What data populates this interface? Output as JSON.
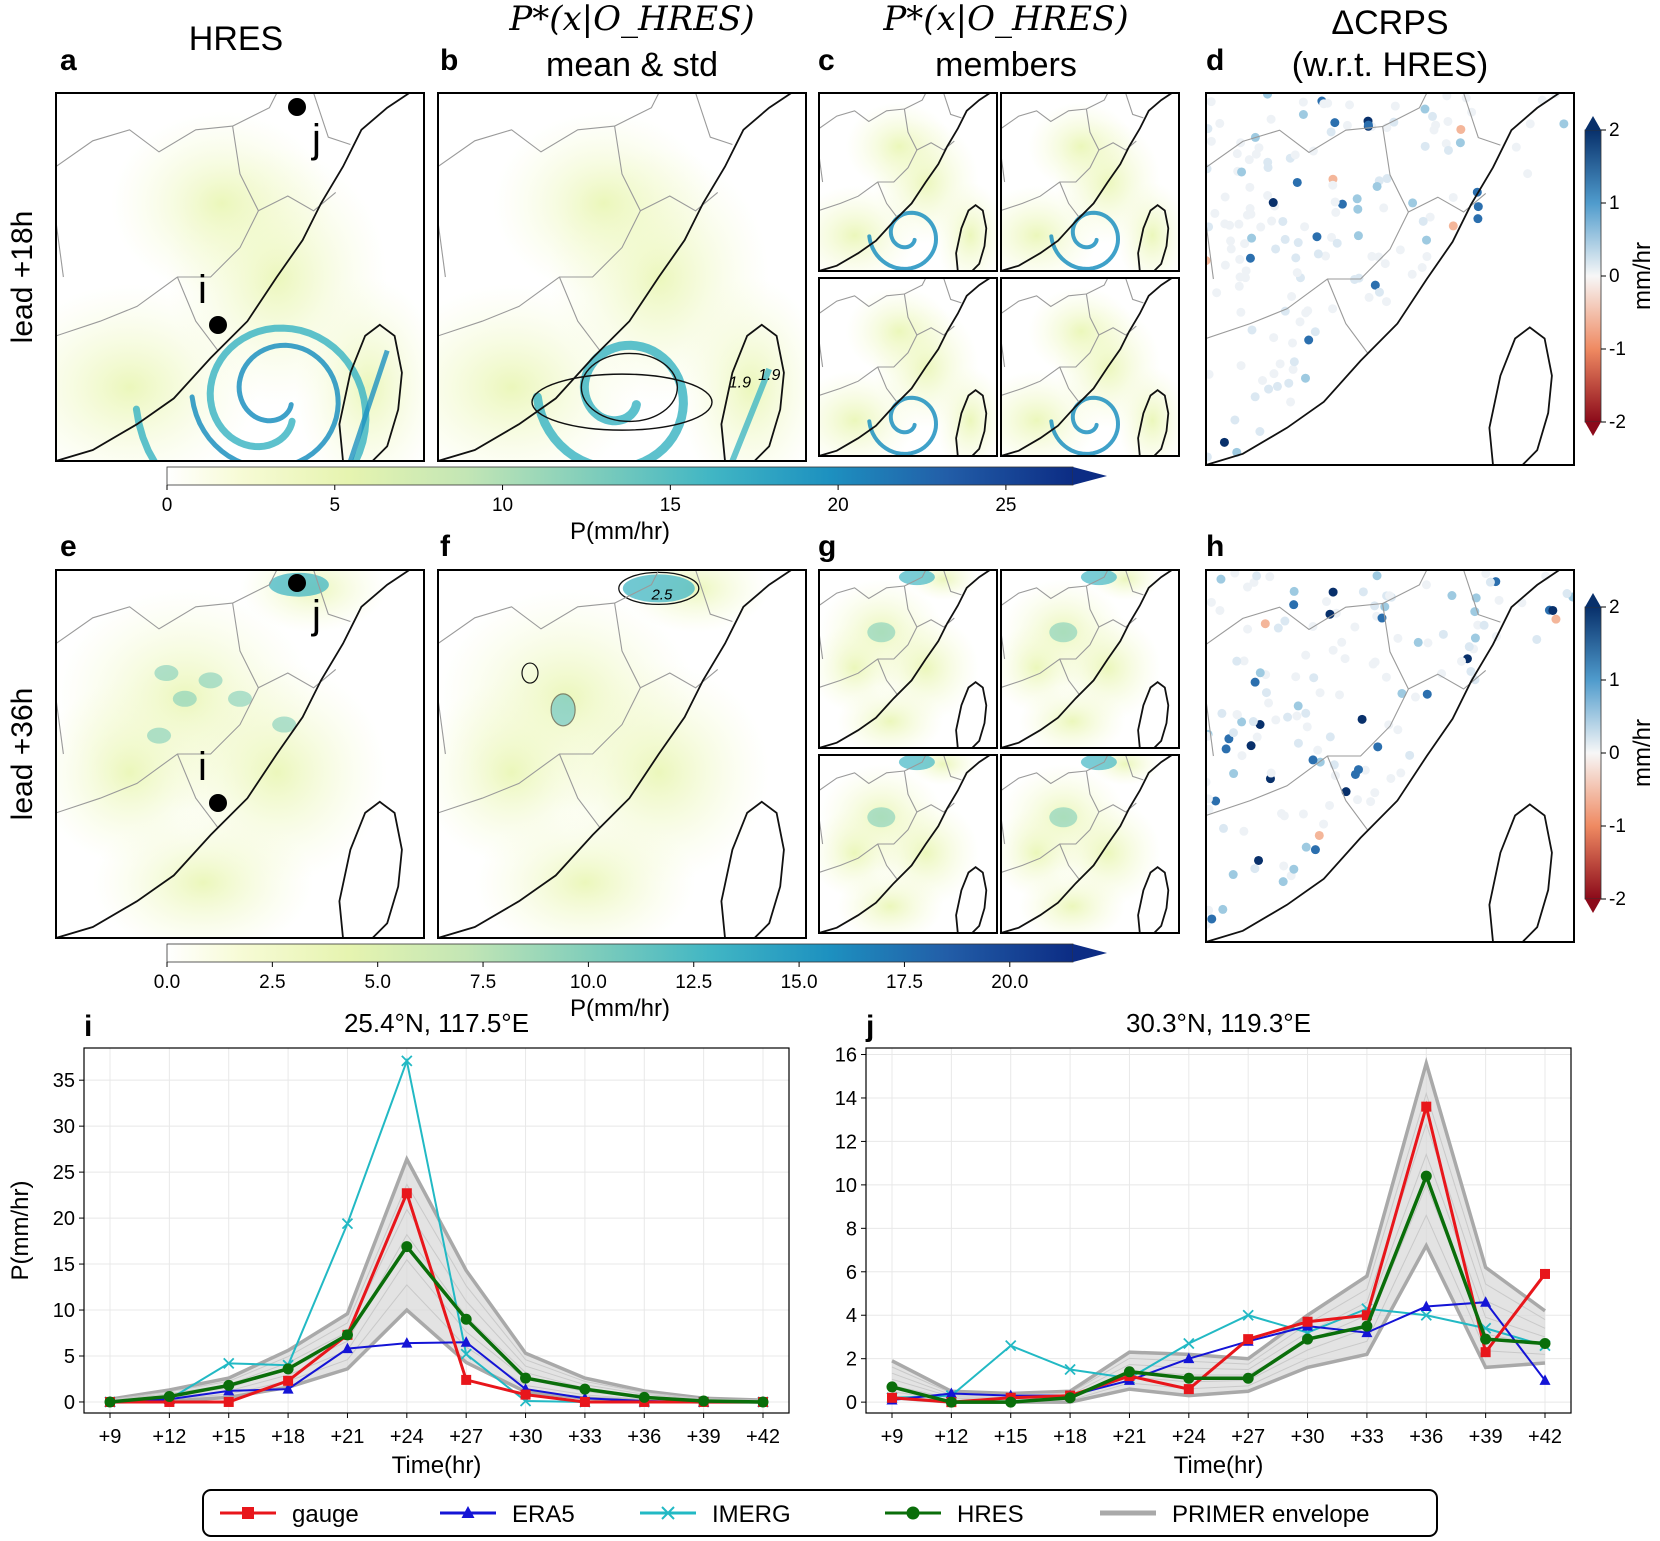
{
  "column_headers": {
    "a": "HRES",
    "b_top": "P*(x|O_HRES)",
    "b_bottom": "mean & std",
    "c_top": "P*(x|O_HRES)",
    "c_bottom": "members",
    "d_top": "ΔCRPS",
    "d_bottom": "(w.r.t. HRES)"
  },
  "panel_letters": [
    "a",
    "b",
    "c",
    "d",
    "e",
    "f",
    "g",
    "h",
    "i",
    "j"
  ],
  "row_labels": [
    "lead +18h",
    "lead +36h"
  ],
  "site_markers": [
    "i",
    "j"
  ],
  "contour_labels": [
    "1.9",
    "1.9",
    "2.5"
  ],
  "colorbar_precip_1": {
    "ticks": [
      "0",
      "5",
      "10",
      "15",
      "20",
      "25"
    ],
    "label": "P(mm/hr)",
    "range": [
      0,
      27
    ]
  },
  "colorbar_precip_2": {
    "ticks": [
      "0.0",
      "2.5",
      "5.0",
      "7.5",
      "10.0",
      "12.5",
      "15.0",
      "17.5",
      "20.0"
    ],
    "label": "P(mm/hr)",
    "range": [
      0,
      21.5
    ]
  },
  "colorbar_crps": {
    "ticks": [
      "2",
      "1",
      "0",
      "-1",
      "-2"
    ],
    "label": "mm/hr",
    "range": [
      -2,
      2
    ]
  },
  "colors": {
    "gauge": "#e8161b",
    "ERA5": "#1414d6",
    "IMERG": "#22b9c4",
    "HRES": "#0a6e0a",
    "PRIMER envelope": "#a9a9a9"
  },
  "chart_data": [
    {
      "type": "line",
      "panel": "i",
      "title": "25.4°N, 117.5°E",
      "xlabel": "Time(hr)",
      "ylabel": "P(mm/hr)",
      "categories": [
        "+9",
        "+12",
        "+15",
        "+18",
        "+21",
        "+24",
        "+27",
        "+30",
        "+33",
        "+36",
        "+39",
        "+42"
      ],
      "yticks": [
        "0",
        "5",
        "10",
        "15",
        "20",
        "25",
        "30",
        "35"
      ],
      "ylim": [
        -1.2,
        38.5
      ],
      "grid": true,
      "series": [
        {
          "name": "gauge",
          "marker": "square",
          "values": [
            0,
            0,
            0,
            2.3,
            7.3,
            22.7,
            2.4,
            0.8,
            0,
            0,
            0,
            0
          ]
        },
        {
          "name": "ERA5",
          "marker": "triangle",
          "values": [
            0,
            0.3,
            1.2,
            1.4,
            5.8,
            6.4,
            6.5,
            1.4,
            0.4,
            0.1,
            0,
            0
          ]
        },
        {
          "name": "IMERG",
          "marker": "x",
          "values": [
            0,
            0.3,
            4.2,
            4.0,
            19.4,
            37.1,
            5.2,
            0.1,
            0,
            0,
            0,
            0
          ]
        },
        {
          "name": "HRES",
          "marker": "circle",
          "values": [
            0,
            0.6,
            1.8,
            3.6,
            7.3,
            16.9,
            9.0,
            2.6,
            1.4,
            0.5,
            0.1,
            0
          ]
        },
        {
          "name": "PRIMER envelope",
          "upper": [
            0.3,
            1.3,
            2.6,
            5.6,
            9.6,
            26.4,
            14.3,
            5.3,
            2.6,
            1.2,
            0.4,
            0.2
          ],
          "lower": [
            0,
            0.1,
            0.5,
            1.6,
            3.6,
            10.0,
            4.3,
            1.1,
            0.4,
            0.1,
            0,
            0
          ]
        }
      ]
    },
    {
      "type": "line",
      "panel": "j",
      "title": "30.3°N, 119.3°E",
      "xlabel": "Time(hr)",
      "ylabel": "",
      "categories": [
        "+9",
        "+12",
        "+15",
        "+18",
        "+21",
        "+24",
        "+27",
        "+30",
        "+33",
        "+36",
        "+39",
        "+42"
      ],
      "yticks": [
        "0",
        "2",
        "4",
        "6",
        "8",
        "10",
        "12",
        "14",
        "16"
      ],
      "ylim": [
        -0.5,
        16.3
      ],
      "grid": true,
      "series": [
        {
          "name": "gauge",
          "marker": "square",
          "values": [
            0.2,
            0,
            0.2,
            0.3,
            1.2,
            0.6,
            2.9,
            3.7,
            4.0,
            13.6,
            2.3,
            5.9
          ]
        },
        {
          "name": "ERA5",
          "marker": "triangle",
          "values": [
            0.1,
            0.4,
            0.3,
            0.3,
            1.0,
            2.0,
            2.8,
            3.5,
            3.2,
            4.4,
            4.6,
            1.0
          ]
        },
        {
          "name": "IMERG",
          "marker": "x",
          "values": [
            0.2,
            0.3,
            2.6,
            1.5,
            1.1,
            2.7,
            4.0,
            3.2,
            4.3,
            4.0,
            3.4,
            2.6
          ]
        },
        {
          "name": "HRES",
          "marker": "circle",
          "values": [
            0.7,
            0,
            0,
            0.2,
            1.4,
            1.1,
            1.1,
            2.9,
            3.5,
            10.4,
            2.9,
            2.7
          ]
        },
        {
          "name": "PRIMER envelope",
          "upper": [
            1.9,
            0.5,
            0.4,
            0.5,
            2.3,
            2.2,
            2.0,
            4.0,
            5.8,
            15.6,
            6.2,
            4.2
          ],
          "lower": [
            0.2,
            0,
            0,
            0,
            0.6,
            0.3,
            0.5,
            1.6,
            2.2,
            7.2,
            1.6,
            1.8
          ]
        }
      ]
    }
  ],
  "legend": {
    "entries": [
      "gauge",
      "ERA5",
      "IMERG",
      "HRES",
      "PRIMER envelope"
    ],
    "placement": "bottom-center"
  }
}
